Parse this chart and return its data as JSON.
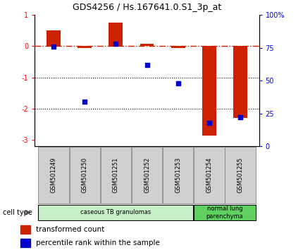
{
  "title": "GDS4256 / Hs.167641.0.S1_3p_at",
  "samples": [
    "GSM501249",
    "GSM501250",
    "GSM501251",
    "GSM501252",
    "GSM501253",
    "GSM501254",
    "GSM501255"
  ],
  "transformed_count": [
    0.5,
    -0.05,
    0.75,
    0.07,
    -0.05,
    -2.85,
    -2.3
  ],
  "percentile_rank": [
    76,
    34,
    78,
    62,
    48,
    18,
    22
  ],
  "ylim_left": [
    -3.2,
    1.0
  ],
  "ylim_right": [
    0,
    100
  ],
  "yticks_left": [
    -3,
    -2,
    -1,
    0,
    1
  ],
  "yticks_right": [
    0,
    25,
    50,
    75,
    100
  ],
  "yticks_right_labels": [
    "0",
    "25",
    "50",
    "75",
    "100%"
  ],
  "hline_y": 0,
  "dotted_lines": [
    -1,
    -2
  ],
  "bar_color": "#cc2200",
  "dot_color": "#0000cc",
  "hline_color": "#cc2200",
  "cell_type_groups": [
    {
      "label": "caseous TB granulomas",
      "samples": [
        0,
        1,
        2,
        3,
        4
      ],
      "color": "#c8f0c8"
    },
    {
      "label": "normal lung\nparenchyma",
      "samples": [
        5,
        6
      ],
      "color": "#60d060"
    }
  ],
  "cell_type_label": "cell type",
  "legend_bar_label": "transformed count",
  "legend_dot_label": "percentile rank within the sample",
  "bar_width": 0.45,
  "bg_color": "#ffffff",
  "sample_box_color": "#d0d0d0",
  "sample_box_edge": "#888888"
}
